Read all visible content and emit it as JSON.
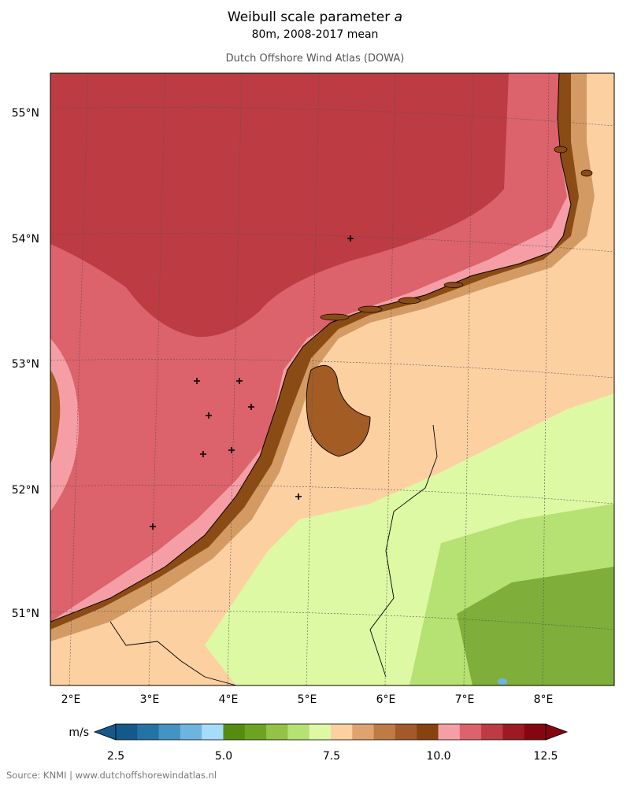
{
  "header": {
    "title_main": "Weibull scale parameter",
    "title_symbol": "a",
    "subtitle": "80m, 2008-2017 mean",
    "atlas_name": "Dutch Offshore Wind Atlas (DOWA)"
  },
  "map": {
    "lat_labels": [
      "55°N",
      "54°N",
      "53°N",
      "52°N",
      "51°N"
    ],
    "lon_labels": [
      "2°E",
      "3°E",
      "4°E",
      "5°E",
      "6°E",
      "7°E",
      "8°E"
    ],
    "colors": {
      "sea_outer": "#bd3b42",
      "sea_mid": "#dc626b",
      "sea_near": "#f69ea5",
      "coast_dark": "#8a4c14",
      "coast_brown": "#a25c24",
      "land_tan": "#d49a64",
      "land_peach": "#fdd0a2",
      "land_lightgreen": "#ddf9a4",
      "land_green": "#b6e173",
      "land_darkgreen": "#7fae3a"
    }
  },
  "colorbar": {
    "unit_label": "m/s",
    "tick_labels": [
      "2.5",
      "5.0",
      "7.5",
      "10.0",
      "12.5"
    ],
    "colors": [
      "#15598a",
      "#2572a6",
      "#4393c3",
      "#6db5e0",
      "#a5dcf9",
      "#558c10",
      "#6ea321",
      "#94c246",
      "#b6e173",
      "#ddf9a4",
      "#fdd0a2",
      "#e0a36f",
      "#c07a45",
      "#a3592a",
      "#87420f",
      "#f69ea5",
      "#dc626b",
      "#bd3b42",
      "#9e1a22",
      "#850611"
    ]
  },
  "footer": {
    "source": "Source: KNMI | www.dutchoffshorewindatlas.nl"
  }
}
